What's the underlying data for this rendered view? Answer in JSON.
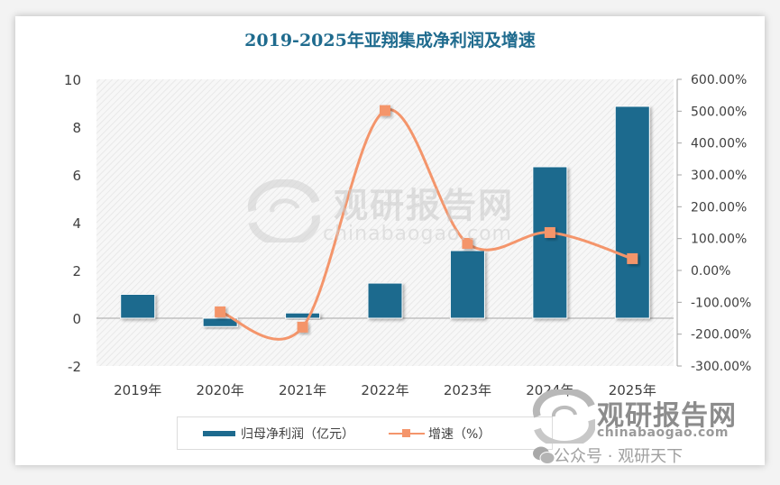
{
  "chart_data": {
    "type": "bar+line",
    "title": "2019-2025年亚翔集成净利润及增速",
    "categories": [
      "2019年",
      "2020年",
      "2021年",
      "2022年",
      "2023年",
      "2024年",
      "2025年"
    ],
    "series": [
      {
        "name": "归母净利润（亿元）",
        "type": "bar",
        "axis": "left",
        "color": "#1d6a8e",
        "values": [
          1.0,
          -0.35,
          0.22,
          1.47,
          2.83,
          6.34,
          8.87
        ]
      },
      {
        "name": "增速（%）",
        "type": "line",
        "axis": "right",
        "color": "#f4956b",
        "smooth": true,
        "values": [
          null,
          -130,
          -178,
          502,
          85,
          119,
          37
        ]
      }
    ],
    "left_axis": {
      "min": -2,
      "max": 10,
      "step": 2,
      "ticks": [
        "10",
        "8",
        "6",
        "4",
        "2",
        "0",
        "-2"
      ]
    },
    "right_axis": {
      "min": -300,
      "max": 600,
      "step": 100,
      "ticks": [
        "600.00%",
        "500.00%",
        "400.00%",
        "300.00%",
        "200.00%",
        "100.00%",
        "0.00%",
        "-100.00%",
        "-200.00%",
        "-300.00%"
      ]
    },
    "xlabel": "",
    "ylabel": "",
    "grid": false,
    "legend_position": "bottom"
  },
  "legend": {
    "bar_label": "归母净利润（亿元）",
    "line_label": "增速（%）"
  },
  "watermark": {
    "brand_cn": "观研报告网",
    "brand_en": "chinabaogao.com",
    "wechat": "公众号 · 观研天下"
  }
}
